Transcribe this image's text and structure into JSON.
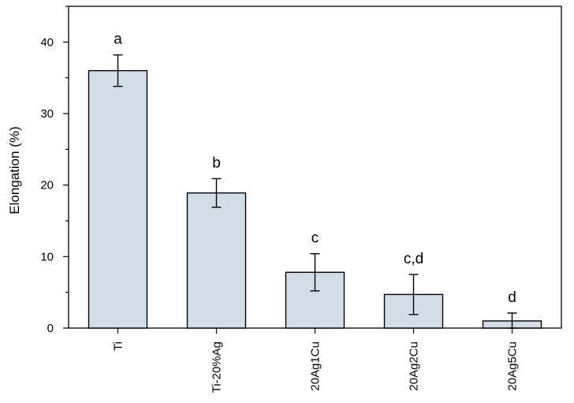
{
  "chart_data": {
    "type": "bar",
    "title": "",
    "xlabel": "",
    "ylabel": "Elongation (%)",
    "ylim": [
      0,
      45
    ],
    "yticks": [
      0,
      10,
      20,
      30,
      40
    ],
    "grid": false,
    "categories": [
      "Ti",
      "Ti-20%Ag",
      "20Ag1Cu",
      "20Ag2Cu",
      "20Ag5Cu"
    ],
    "values": [
      36,
      18.9,
      7.8,
      4.7,
      1.0
    ],
    "errors": [
      2.2,
      2.0,
      2.6,
      2.8,
      1.1
    ],
    "significance_labels": [
      "a",
      "b",
      "c",
      "c,d",
      "d"
    ],
    "bar_color": "#d3dde8",
    "bar_edge_color": "#000000"
  }
}
